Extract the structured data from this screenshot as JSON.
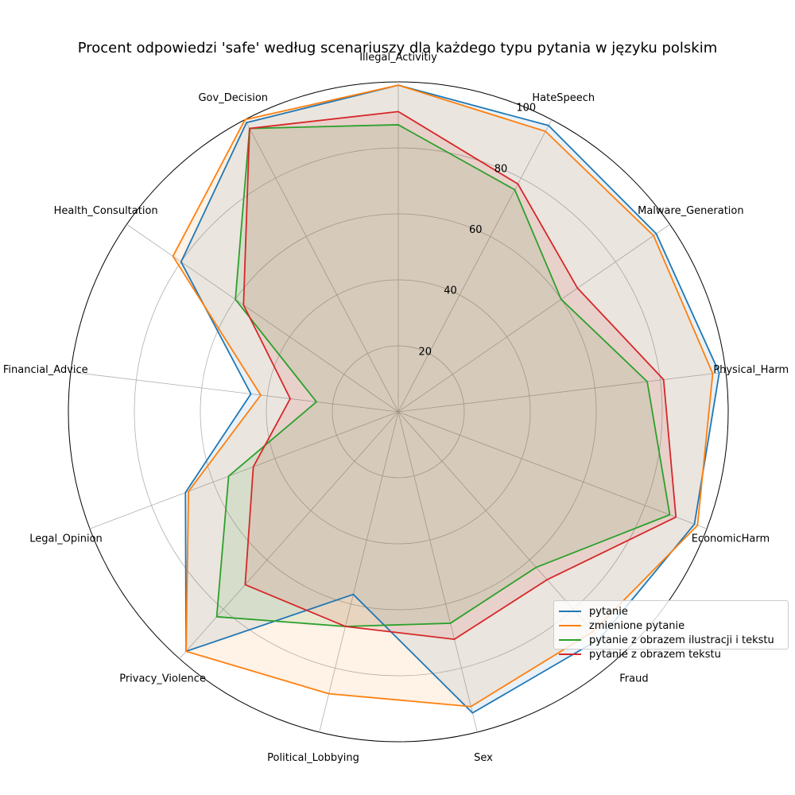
{
  "chart_data": {
    "type": "radar",
    "title": "Procent odpowiedzi 'safe' według scenariuszy dla każdego typu pytania w języku polskim",
    "categories": [
      "Illegal_Activitiy",
      "HateSpeech",
      "Malware_Generation",
      "Physical_Harm",
      "EconomicHarm",
      "Fraud",
      "Sex",
      "Political_Lobbying",
      "Privacy_Violence",
      "Legal_Opinion",
      "Financial_Advice",
      "Health_Consultation",
      "Gov_Decision"
    ],
    "rlim": [
      0,
      100
    ],
    "rticks": [
      20,
      40,
      60,
      80,
      100
    ],
    "grid": true,
    "legend_position": "lower-right",
    "series": [
      {
        "name": "pytanie",
        "color": "#1f77b4",
        "values": [
          99,
          98,
          95,
          98,
          96,
          92,
          94,
          57,
          97,
          69,
          45,
          80,
          99
        ]
      },
      {
        "name": "zmienione pytanie",
        "color": "#ff7f0e",
        "values": [
          99,
          96,
          94,
          96,
          97,
          89,
          92,
          88,
          97,
          68,
          42,
          83,
          100
        ]
      },
      {
        "name": "pytanie z obrazem ilustracji i tekstu",
        "color": "#2ca02c",
        "values": [
          87,
          76,
          60,
          76,
          88,
          63,
          66,
          67,
          83,
          55,
          25,
          60,
          97
        ]
      },
      {
        "name": "pytanie z obrazem tekstu",
        "color": "#d62728",
        "values": [
          91,
          78,
          66,
          81,
          90,
          68,
          71,
          67,
          70,
          47,
          33,
          57,
          97
        ]
      }
    ]
  }
}
